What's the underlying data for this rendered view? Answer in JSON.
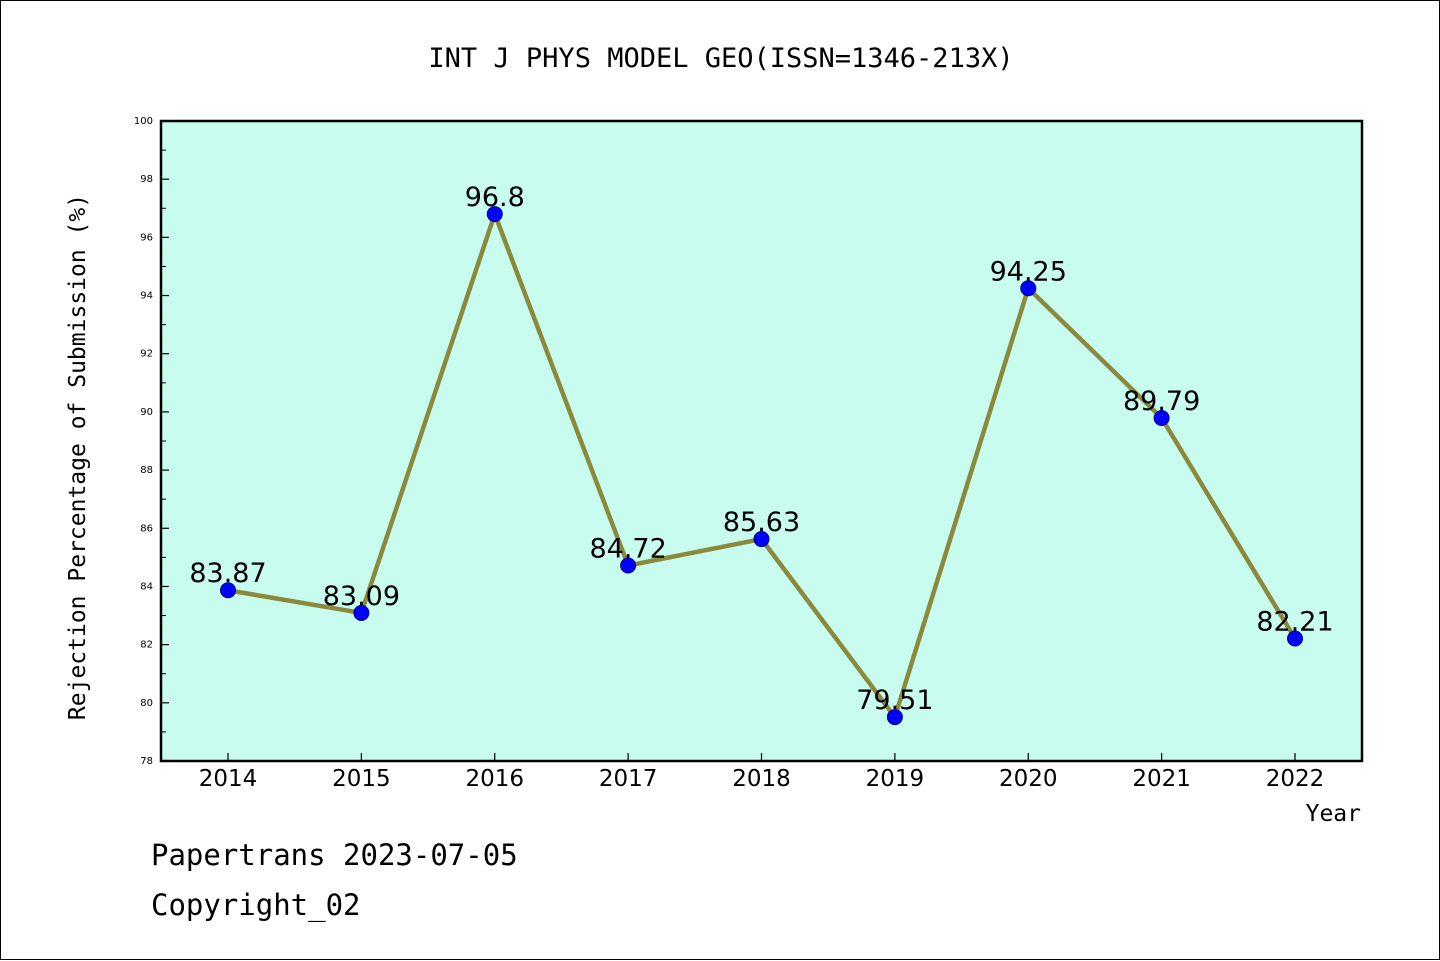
{
  "footer": {
    "line1": "Papertrans 2023-07-05",
    "line2": "Copyright_02"
  },
  "chart_data": {
    "type": "line",
    "title": "INT J PHYS MODEL GEO(ISSN=1346-213X)",
    "xlabel": "Year",
    "ylabel": "Rejection Percentage of Submission (%)",
    "categories": [
      "2014",
      "2015",
      "2016",
      "2017",
      "2018",
      "2019",
      "2020",
      "2021",
      "2022"
    ],
    "series": [
      {
        "values": [
          83.87,
          83.09,
          96.8,
          84.72,
          85.63,
          79.51,
          94.25,
          89.79,
          82.21
        ],
        "labels": [
          "83.87",
          "83.09",
          "96.8",
          "84.72",
          "85.63",
          "79.51",
          "94.25",
          "89.79",
          "82.21"
        ]
      }
    ],
    "ylim": [
      78,
      100
    ],
    "yticks": [
      "78",
      "80",
      "82",
      "84",
      "86",
      "88",
      "90",
      "92",
      "94",
      "96",
      "98",
      "100"
    ],
    "grid": false,
    "colors": {
      "plot_background": "#c8fcee",
      "line": "#8b8a3c",
      "marker": "#0000ff"
    }
  }
}
